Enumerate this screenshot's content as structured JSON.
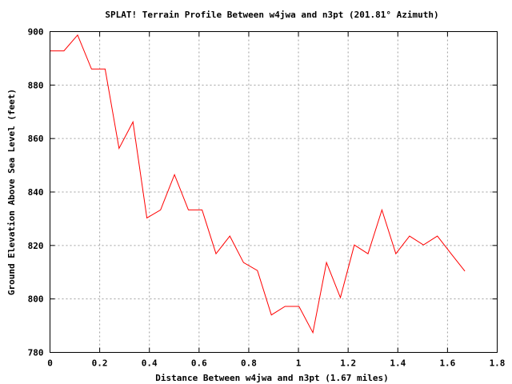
{
  "chart_data": {
    "type": "line",
    "title": "SPLAT! Terrain Profile Between w4jwa and n3pt (201.81° Azimuth)",
    "xlabel": "Distance Between w4jwa and n3pt (1.67 miles)",
    "ylabel": "Ground Elevation Above Sea Level (feet)",
    "xlim": [
      0,
      1.8
    ],
    "ylim": [
      780,
      900
    ],
    "xticks": [
      0,
      0.2,
      0.4,
      0.6,
      0.8,
      1,
      1.2,
      1.4,
      1.6,
      1.8
    ],
    "xtick_labels": [
      "0",
      "0.2",
      "0.4",
      "0.6",
      "0.8",
      "1",
      "1.2",
      "1.4",
      "1.6",
      "1.8"
    ],
    "yticks": [
      780,
      800,
      820,
      840,
      860,
      880,
      900
    ],
    "ytick_labels": [
      "780",
      "800",
      "820",
      "840",
      "860",
      "880",
      "900"
    ],
    "grid": true,
    "series": [
      {
        "name": "terrain",
        "color": "#ff0000",
        "x": [
          0,
          0.056,
          0.111,
          0.167,
          0.222,
          0.278,
          0.334,
          0.39,
          0.445,
          0.501,
          0.557,
          0.612,
          0.668,
          0.724,
          0.779,
          0.835,
          0.891,
          0.946,
          1.002,
          1.058,
          1.113,
          1.169,
          1.225,
          1.28,
          1.336,
          1.392,
          1.447,
          1.503,
          1.559,
          1.614,
          1.67
        ],
        "y": [
          892.8,
          892.8,
          898.7,
          886.0,
          886.0,
          856.3,
          866.2,
          830.3,
          833.3,
          846.5,
          833.3,
          833.3,
          816.9,
          823.5,
          813.6,
          810.6,
          794.0,
          797.2,
          797.2,
          787.4,
          813.6,
          800.5,
          820.2,
          816.9,
          833.3,
          816.9,
          823.5,
          820.2,
          823.5,
          817.0,
          810.4
        ]
      }
    ]
  }
}
